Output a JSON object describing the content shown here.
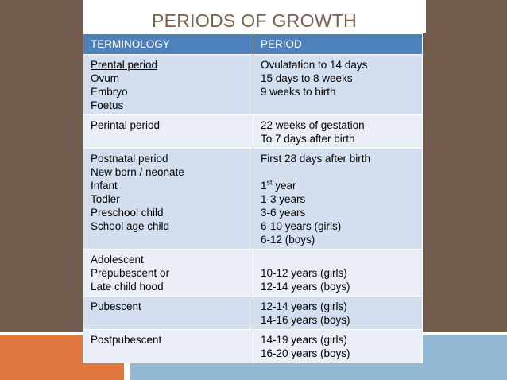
{
  "slide": {
    "title": "PERIODS OF GROWTH"
  },
  "table": {
    "headers": [
      "TERMINOLOGY",
      "PERIOD"
    ],
    "rows": [
      {
        "terms": [
          "Prental period",
          "Ovum",
          "Embryo",
          "Foetus"
        ],
        "periods": [
          "Ovulatation to 14 days",
          "15 days to 8 weeks",
          "9 weeks to birth",
          ""
        ]
      },
      {
        "terms": [
          "Perintal period",
          ""
        ],
        "periods": [
          "22 weeks of gestation",
          "To 7 days after birth"
        ]
      },
      {
        "terms": [
          "Postnatal period",
          "New born / neonate",
          "Infant",
          "Todler",
          "Preschool child",
          "School age child",
          ""
        ],
        "periods": [
          "First 28 days after birth",
          "",
          "1",
          "1-3 years",
          "3-6 years",
          "6-10 years (girls)",
          "6-12 (boys)"
        ],
        "ordinal_suffix": "st",
        "ordinal_rest": " year"
      },
      {
        "terms": [
          "Adolescent",
          "Prepubescent or",
          "Late child hood"
        ],
        "periods": [
          "",
          "10-12 years (girls)",
          "12-14 years (boys)"
        ]
      },
      {
        "terms": [
          "Pubescent",
          ""
        ],
        "periods": [
          "12-14 years (girls)",
          "14-16 years (boys)"
        ]
      },
      {
        "terms": [
          "Postpubescent",
          ""
        ],
        "periods": [
          "14-19 years (girls)",
          "16-20 years (boys)"
        ]
      }
    ]
  },
  "colors": {
    "background": "#725a4c",
    "header": "#4f81bd",
    "row_odd": "#d3dfee",
    "row_even": "#eaeff7",
    "title": "#7d5e4c",
    "accent_orange": "#e0773f",
    "accent_blue": "#93b8d3"
  }
}
